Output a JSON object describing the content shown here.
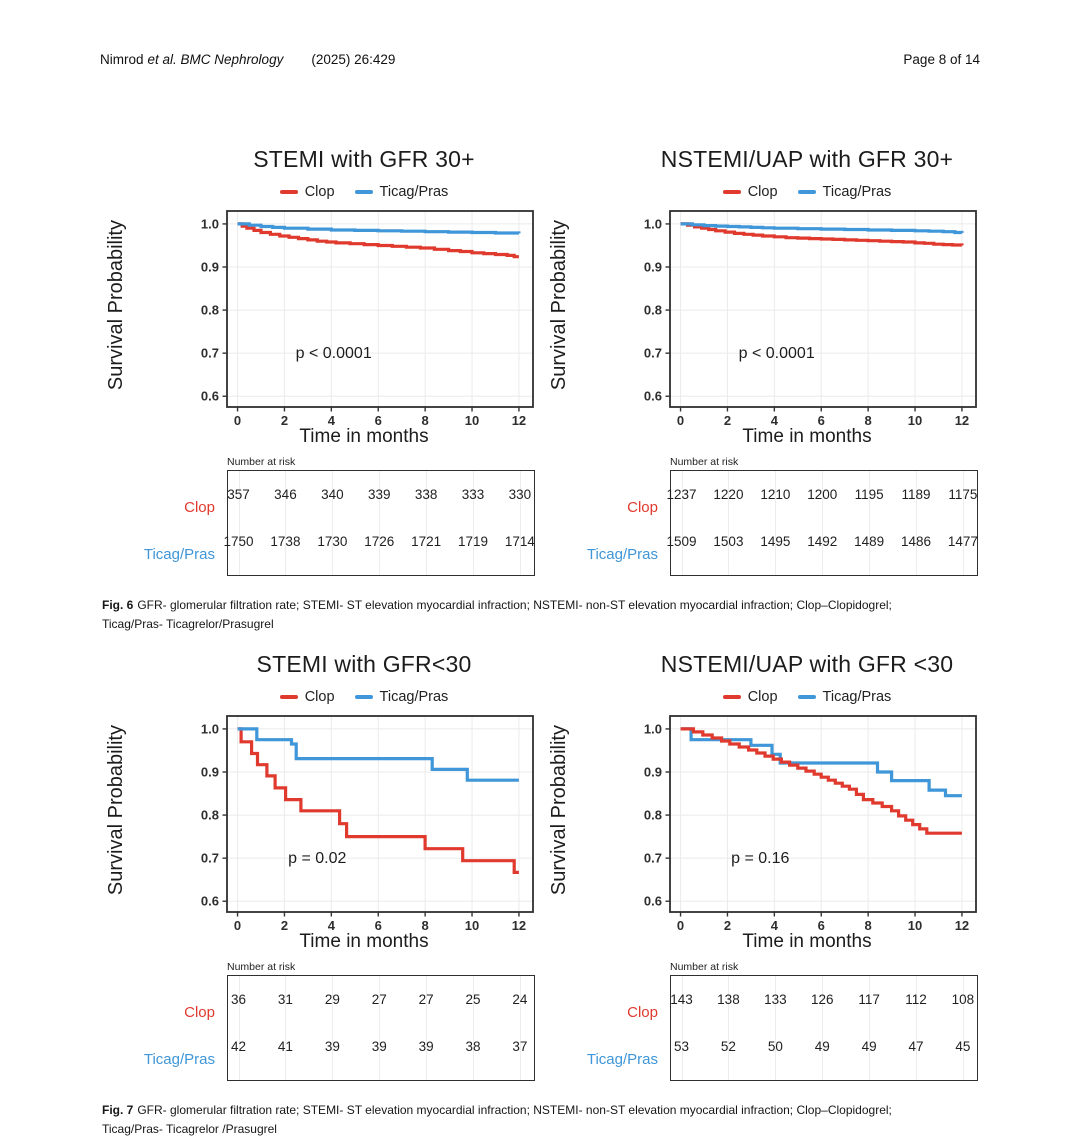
{
  "header": {
    "authors": "Nimrod",
    "journal_italic": "et al. BMC Nephrology",
    "citation": "(2025) 26:429",
    "page_label": "Page 8 of 14"
  },
  "colors": {
    "clop_red": "#E03A2F",
    "ticag_blue": "#3F96D8"
  },
  "figures": [
    {
      "caption_label": "Fig. 6",
      "caption_line1": "GFR- glomerular filtration rate; STEMI- ST elevation myocardial infraction; NSTEMI- non-ST elevation myocardial infraction; Clop–Clopidogrel;",
      "caption_line2": "Ticag/Pras- Ticagrelor/Prasugrel",
      "panel_indices": [
        0,
        1
      ]
    },
    {
      "caption_label": "Fig. 7",
      "caption_line1": "GFR- glomerular filtration rate; STEMI- ST elevation myocardial infraction; NSTEMI- non-ST elevation myocardial infraction; Clop–Clopidogrel;",
      "caption_line2": "Ticag/Pras- Ticagrelor /Prasugrel",
      "panel_indices": [
        2,
        3
      ]
    }
  ],
  "chart_data": [
    {
      "type": "km-step",
      "title": "STEMI with GFR 30+",
      "ylabel": "Survival Probability",
      "xlabel": "Time in months",
      "p_text": "p < 0.0001",
      "p_pos": {
        "x": 4.1,
        "y": 0.7
      },
      "xticks": [
        0,
        2,
        4,
        6,
        8,
        10,
        12
      ],
      "yticks": [
        1.0,
        0.9,
        0.8,
        0.7,
        0.6
      ],
      "xlim": [
        -0.45,
        12.6
      ],
      "ylim": [
        0.575,
        1.03
      ],
      "grid": true,
      "legend": [
        {
          "label": "Clop",
          "color": "#E03A2F"
        },
        {
          "label": "Ticag/Pras",
          "color": "#3F96D8"
        }
      ],
      "series": [
        {
          "name": "Clop",
          "color": "#E03A2F",
          "points": [
            [
              0,
              1.0
            ],
            [
              0.2,
              0.995
            ],
            [
              0.4,
              0.99
            ],
            [
              0.7,
              0.985
            ],
            [
              1.0,
              0.98
            ],
            [
              1.4,
              0.976
            ],
            [
              1.8,
              0.972
            ],
            [
              2.2,
              0.969
            ],
            [
              2.6,
              0.966
            ],
            [
              3.0,
              0.963
            ],
            [
              3.4,
              0.96
            ],
            [
              3.8,
              0.958
            ],
            [
              4.2,
              0.956
            ],
            [
              4.8,
              0.954
            ],
            [
              5.4,
              0.952
            ],
            [
              6.0,
              0.95
            ],
            [
              6.6,
              0.948
            ],
            [
              7.2,
              0.946
            ],
            [
              7.8,
              0.944
            ],
            [
              8.4,
              0.941
            ],
            [
              9.0,
              0.938
            ],
            [
              9.5,
              0.936
            ],
            [
              10.0,
              0.933
            ],
            [
              10.5,
              0.931
            ],
            [
              11.0,
              0.929
            ],
            [
              11.5,
              0.927
            ],
            [
              11.8,
              0.924
            ],
            [
              12,
              0.924
            ]
          ]
        },
        {
          "name": "Ticag/Pras",
          "color": "#3F96D8",
          "points": [
            [
              0,
              1.0
            ],
            [
              0.5,
              0.997
            ],
            [
              1.0,
              0.994
            ],
            [
              1.5,
              0.992
            ],
            [
              2.0,
              0.99
            ],
            [
              3.0,
              0.988
            ],
            [
              4.0,
              0.986
            ],
            [
              5.0,
              0.985
            ],
            [
              6.0,
              0.984
            ],
            [
              7.0,
              0.983
            ],
            [
              8.0,
              0.982
            ],
            [
              9.0,
              0.981
            ],
            [
              10.0,
              0.98
            ],
            [
              11.0,
              0.979
            ],
            [
              12,
              0.978
            ]
          ]
        }
      ],
      "risk": {
        "label": "Number at risk",
        "rows": [
          {
            "name": "Clop",
            "color": "#E03A2F",
            "values": [
              357,
              346,
              340,
              339,
              338,
              333,
              330
            ]
          },
          {
            "name": "Ticag/Pras",
            "color": "#3F96D8",
            "values": [
              1750,
              1738,
              1730,
              1726,
              1721,
              1719,
              1714
            ]
          }
        ]
      }
    },
    {
      "type": "km-step",
      "title": "NSTEMI/UAP with GFR 30+",
      "ylabel": "Survival Probability",
      "xlabel": "Time in months",
      "p_text": "p < 0.0001",
      "p_pos": {
        "x": 4.1,
        "y": 0.7
      },
      "xticks": [
        0,
        2,
        4,
        6,
        8,
        10,
        12
      ],
      "yticks": [
        1.0,
        0.9,
        0.8,
        0.7,
        0.6
      ],
      "xlim": [
        -0.45,
        12.6
      ],
      "ylim": [
        0.575,
        1.03
      ],
      "grid": true,
      "legend": [
        {
          "label": "Clop",
          "color": "#E03A2F"
        },
        {
          "label": "Ticag/Pras",
          "color": "#3F96D8"
        }
      ],
      "series": [
        {
          "name": "Clop",
          "color": "#E03A2F",
          "points": [
            [
              0,
              1.0
            ],
            [
              0.3,
              0.997
            ],
            [
              0.6,
              0.993
            ],
            [
              0.9,
              0.99
            ],
            [
              1.2,
              0.987
            ],
            [
              1.5,
              0.984
            ],
            [
              1.9,
              0.981
            ],
            [
              2.3,
              0.978
            ],
            [
              2.7,
              0.976
            ],
            [
              3.1,
              0.974
            ],
            [
              3.5,
              0.972
            ],
            [
              4.0,
              0.97
            ],
            [
              4.5,
              0.968
            ],
            [
              5.0,
              0.967
            ],
            [
              5.5,
              0.966
            ],
            [
              6.0,
              0.965
            ],
            [
              6.5,
              0.964
            ],
            [
              7.0,
              0.963
            ],
            [
              7.5,
              0.962
            ],
            [
              8.0,
              0.961
            ],
            [
              8.5,
              0.96
            ],
            [
              9.0,
              0.959
            ],
            [
              9.5,
              0.958
            ],
            [
              10.0,
              0.956
            ],
            [
              10.4,
              0.955
            ],
            [
              10.8,
              0.953
            ],
            [
              11.2,
              0.952
            ],
            [
              11.6,
              0.951
            ],
            [
              12,
              0.95
            ]
          ]
        },
        {
          "name": "Ticag/Pras",
          "color": "#3F96D8",
          "points": [
            [
              0,
              1.0
            ],
            [
              0.5,
              0.998
            ],
            [
              1.0,
              0.996
            ],
            [
              1.5,
              0.995
            ],
            [
              2.0,
              0.994
            ],
            [
              2.5,
              0.993
            ],
            [
              3.0,
              0.992
            ],
            [
              3.5,
              0.991
            ],
            [
              4.0,
              0.99
            ],
            [
              5.0,
              0.989
            ],
            [
              6.0,
              0.988
            ],
            [
              7.0,
              0.987
            ],
            [
              8.0,
              0.986
            ],
            [
              9.0,
              0.985
            ],
            [
              10.0,
              0.984
            ],
            [
              10.6,
              0.983
            ],
            [
              11.2,
              0.982
            ],
            [
              11.7,
              0.98
            ],
            [
              12,
              0.979
            ]
          ]
        }
      ],
      "risk": {
        "label": "Number at risk",
        "rows": [
          {
            "name": "Clop",
            "color": "#E03A2F",
            "values": [
              1237,
              1220,
              1210,
              1200,
              1195,
              1189,
              1175
            ]
          },
          {
            "name": "Ticag/Pras",
            "color": "#3F96D8",
            "values": [
              1509,
              1503,
              1495,
              1492,
              1489,
              1486,
              1477
            ]
          }
        ]
      }
    },
    {
      "type": "km-step",
      "title": "STEMI with GFR<30",
      "ylabel": "Survival Probability",
      "xlabel": "Time in months",
      "p_text": "p = 0.02",
      "p_pos": {
        "x": 3.4,
        "y": 0.7
      },
      "xticks": [
        0,
        2,
        4,
        6,
        8,
        10,
        12
      ],
      "yticks": [
        1.0,
        0.9,
        0.8,
        0.7,
        0.6
      ],
      "xlim": [
        -0.45,
        12.6
      ],
      "ylim": [
        0.575,
        1.03
      ],
      "grid": true,
      "legend": [
        {
          "label": "Clop",
          "color": "#E03A2F"
        },
        {
          "label": "Ticag/Pras",
          "color": "#3F96D8"
        }
      ],
      "series": [
        {
          "name": "Clop",
          "color": "#E03A2F",
          "points": [
            [
              0,
              1.0
            ],
            [
              0.15,
              0.97
            ],
            [
              0.6,
              0.943
            ],
            [
              0.85,
              0.917
            ],
            [
              1.25,
              0.891
            ],
            [
              1.6,
              0.863
            ],
            [
              2.05,
              0.836
            ],
            [
              2.7,
              0.81
            ],
            [
              4.35,
              0.78
            ],
            [
              4.65,
              0.75
            ],
            [
              8.0,
              0.722
            ],
            [
              9.6,
              0.694
            ],
            [
              11.8,
              0.667
            ],
            [
              12,
              0.667
            ]
          ]
        },
        {
          "name": "Ticag/Pras",
          "color": "#3F96D8",
          "points": [
            [
              0,
              1.0
            ],
            [
              0.82,
              0.975
            ],
            [
              2.3,
              0.965
            ],
            [
              2.5,
              0.931
            ],
            [
              8.3,
              0.906
            ],
            [
              9.8,
              0.881
            ],
            [
              12,
              0.881
            ]
          ]
        }
      ],
      "risk": {
        "label": "Number at risk",
        "rows": [
          {
            "name": "Clop",
            "color": "#E03A2F",
            "values": [
              36,
              31,
              29,
              27,
              27,
              25,
              24
            ]
          },
          {
            "name": "Ticag/Pras",
            "color": "#3F96D8",
            "values": [
              42,
              41,
              39,
              39,
              39,
              38,
              37
            ]
          }
        ]
      }
    },
    {
      "type": "km-step",
      "title": "NSTEMI/UAP with GFR <30",
      "ylabel": "Survival Probability",
      "xlabel": "Time in months",
      "p_text": "p = 0.16",
      "p_pos": {
        "x": 3.4,
        "y": 0.7
      },
      "xticks": [
        0,
        2,
        4,
        6,
        8,
        10,
        12
      ],
      "yticks": [
        1.0,
        0.9,
        0.8,
        0.7,
        0.6
      ],
      "xlim": [
        -0.45,
        12.6
      ],
      "ylim": [
        0.575,
        1.03
      ],
      "grid": true,
      "legend": [
        {
          "label": "Clop",
          "color": "#E03A2F"
        },
        {
          "label": "Ticag/Pras",
          "color": "#3F96D8"
        }
      ],
      "series": [
        {
          "name": "Ticag/Pras",
          "color": "#3F96D8",
          "points": [
            [
              0,
              1.0
            ],
            [
              0.45,
              0.975
            ],
            [
              3.0,
              0.962
            ],
            [
              3.9,
              0.941
            ],
            [
              4.25,
              0.921
            ],
            [
              8.4,
              0.9
            ],
            [
              9.0,
              0.88
            ],
            [
              10.6,
              0.858
            ],
            [
              11.3,
              0.845
            ],
            [
              12,
              0.845
            ]
          ]
        },
        {
          "name": "Clop",
          "color": "#E03A2F",
          "points": [
            [
              0,
              1.0
            ],
            [
              0.55,
              0.993
            ],
            [
              0.95,
              0.986
            ],
            [
              1.35,
              0.979
            ],
            [
              1.75,
              0.972
            ],
            [
              2.1,
              0.965
            ],
            [
              2.5,
              0.958
            ],
            [
              2.9,
              0.951
            ],
            [
              3.25,
              0.944
            ],
            [
              3.6,
              0.937
            ],
            [
              3.95,
              0.93
            ],
            [
              4.3,
              0.923
            ],
            [
              4.65,
              0.916
            ],
            [
              5.0,
              0.909
            ],
            [
              5.35,
              0.902
            ],
            [
              5.7,
              0.895
            ],
            [
              6.0,
              0.888
            ],
            [
              6.3,
              0.881
            ],
            [
              6.6,
              0.874
            ],
            [
              6.9,
              0.867
            ],
            [
              7.2,
              0.86
            ],
            [
              7.5,
              0.848
            ],
            [
              7.8,
              0.836
            ],
            [
              8.2,
              0.828
            ],
            [
              8.6,
              0.82
            ],
            [
              9.0,
              0.81
            ],
            [
              9.3,
              0.798
            ],
            [
              9.6,
              0.788
            ],
            [
              9.9,
              0.778
            ],
            [
              10.2,
              0.768
            ],
            [
              10.5,
              0.758
            ],
            [
              12,
              0.758
            ]
          ]
        }
      ],
      "risk": {
        "label": "Number at risk",
        "rows": [
          {
            "name": "Clop",
            "color": "#E03A2F",
            "values": [
              143,
              138,
              133,
              126,
              117,
              112,
              108
            ]
          },
          {
            "name": "Ticag/Pras",
            "color": "#3F96D8",
            "values": [
              53,
              52,
              50,
              49,
              49,
              47,
              45
            ]
          }
        ]
      }
    }
  ]
}
